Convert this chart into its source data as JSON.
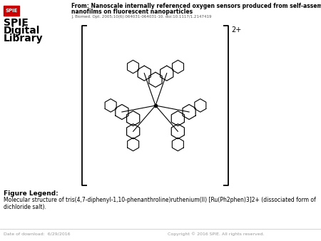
{
  "white": "#ffffff",
  "black": "#000000",
  "dark_gray": "#555555",
  "gray": "#999999",
  "light_gray": "#cccccc",
  "title_line1": "From: Nanoscale internally referenced oxygen sensors produced from self-assembled",
  "title_line2": "nanofilms on fluorescent nanoparticles",
  "journal_ref": "J. Biomed. Opt. 2005;10(6):064031-064031-10. doi:10.1117/1.2147419",
  "figure_legend_header": "Figure Legend:",
  "figure_legend_text": "Molecular structure of tris(4,7-diphenyl-1,10-phenanthroline)ruthenium(II) [Ru(Ph2phen)3]2+ (dissociated form of dichloride salt).",
  "footer_left": "Date of download:  6/29/2016",
  "footer_right": "Copyright © 2016 SPIE. All rights reserved.",
  "charge_label": "2+",
  "spie_red": "#cc0000"
}
